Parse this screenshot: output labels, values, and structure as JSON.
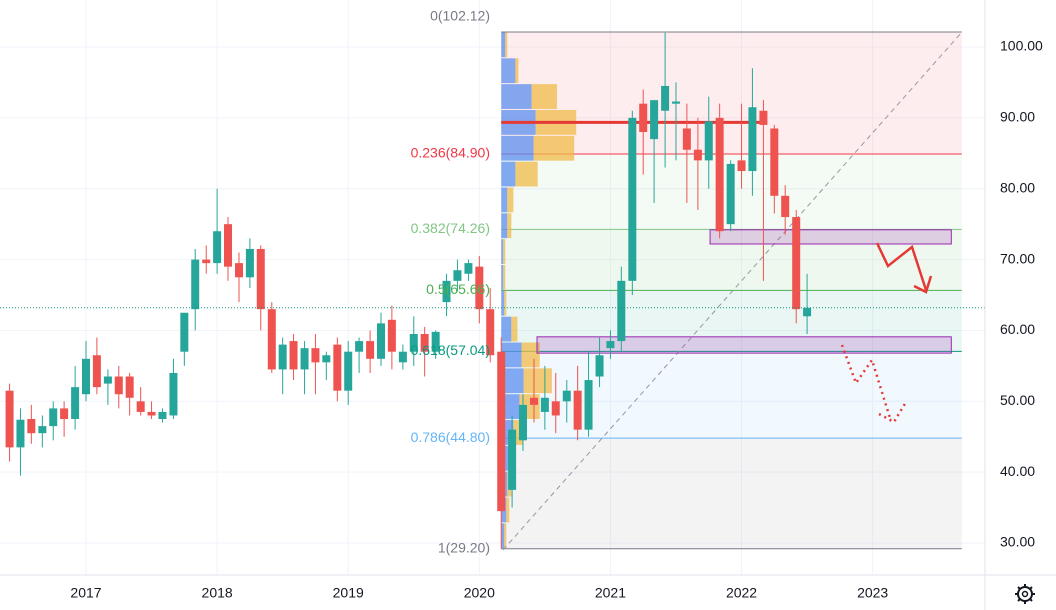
{
  "chart_data": {
    "type": "candlestick",
    "x": [
      2016.417,
      2016.5,
      2016.583,
      2016.667,
      2016.75,
      2016.833,
      2016.917,
      2017,
      2017.083,
      2017.167,
      2017.25,
      2017.333,
      2017.417,
      2017.5,
      2017.583,
      2017.667,
      2017.75,
      2017.833,
      2017.917,
      2018,
      2018.083,
      2018.167,
      2018.25,
      2018.333,
      2018.417,
      2018.5,
      2018.583,
      2018.667,
      2018.75,
      2018.833,
      2018.917,
      2019,
      2019.083,
      2019.167,
      2019.25,
      2019.333,
      2019.417,
      2019.5,
      2019.583,
      2019.667,
      2019.75,
      2019.833,
      2019.917,
      2020,
      2020.083,
      2020.167,
      2020.25,
      2020.333,
      2020.417,
      2020.5,
      2020.583,
      2020.667,
      2020.75,
      2020.833,
      2020.917,
      2021,
      2021.083,
      2021.167,
      2021.25,
      2021.333,
      2021.417,
      2021.5,
      2021.583,
      2021.667,
      2021.75,
      2021.833,
      2021.917,
      2022,
      2022.083,
      2022.167,
      2022.25,
      2022.333,
      2022.417,
      2022.5
    ],
    "open": [
      51.5,
      43.5,
      47.5,
      45.5,
      46.5,
      49,
      47.5,
      51,
      56.5,
      52.5,
      53.5,
      53.5,
      50,
      48.5,
      47.5,
      48,
      57,
      63,
      70,
      69.5,
      75,
      69.5,
      67.5,
      71.5,
      63,
      54.5,
      58.5,
      54.5,
      57.5,
      55.5,
      58,
      51.5,
      57,
      58.5,
      56,
      61.5,
      55.5,
      57,
      59.5,
      57,
      64,
      67,
      68,
      69,
      63,
      57,
      37.5,
      44.5,
      50.5,
      48.5,
      50,
      50,
      51.5,
      46,
      53.5,
      57.5,
      58.5,
      67,
      92,
      87,
      91,
      92,
      88.5,
      85.5,
      84,
      90,
      75,
      84,
      82.5,
      91,
      88.5,
      79,
      76,
      62
    ],
    "high": [
      52.5,
      49,
      49.5,
      48,
      50,
      50,
      55,
      58.5,
      59,
      54.5,
      55,
      54,
      52,
      50,
      49,
      56,
      62,
      71.5,
      72,
      80,
      76,
      71,
      73,
      72,
      64,
      59,
      59.5,
      58.5,
      59.5,
      57,
      59,
      58.5,
      59,
      60,
      62.5,
      63.5,
      58,
      62,
      60.5,
      60,
      68,
      70,
      70,
      70.5,
      66,
      59,
      48,
      51,
      56,
      55,
      54,
      53,
      55,
      57,
      59,
      60,
      69,
      91,
      94,
      92,
      102,
      95,
      92,
      90,
      93,
      92,
      84,
      92,
      97,
      92.5,
      89,
      80.5,
      77,
      68
    ],
    "low": [
      41.5,
      39.5,
      44,
      43.5,
      44.5,
      45,
      46,
      50,
      51,
      49.5,
      49,
      48,
      48,
      47.5,
      47,
      47.5,
      55,
      60,
      68,
      68,
      67,
      64,
      66,
      60,
      54,
      51,
      53,
      51,
      51,
      53,
      50,
      49.5,
      54,
      54,
      55,
      54.5,
      54.5,
      55,
      53.5,
      56,
      62,
      65.5,
      67,
      61,
      55.5,
      29.2,
      35,
      43,
      47,
      46,
      45.5,
      47,
      44.5,
      45,
      52,
      56,
      57,
      65,
      82,
      78,
      83,
      84,
      78,
      77,
      80,
      73,
      74,
      80,
      79,
      67,
      76.5,
      73.5,
      61,
      59.5
    ],
    "close": [
      43.5,
      47.4,
      45.5,
      46.5,
      49,
      47.5,
      52,
      56,
      52,
      53.5,
      51,
      50.5,
      48.5,
      48,
      48.5,
      54,
      62.5,
      70,
      69.5,
      74,
      69,
      67.5,
      71.5,
      63,
      54.5,
      58,
      54.5,
      57.5,
      55.5,
      56.5,
      51.5,
      57,
      58.5,
      56,
      61,
      57,
      57,
      59.5,
      57,
      59.8,
      67,
      68.5,
      69.5,
      63,
      56.5,
      34.5,
      46,
      49.5,
      49.5,
      50.5,
      48,
      51.5,
      46,
      53,
      56.5,
      58.5,
      67,
      90,
      88,
      92.5,
      94.5,
      92.3,
      85.5,
      84,
      89.5,
      74,
      83.5,
      82.5,
      91.5,
      89,
      79,
      76,
      63,
      63.2
    ],
    "up_color": "#26a69a",
    "down_color": "#ef5350",
    "xlim": [
      2016.344,
      2023.857
    ],
    "ylim": [
      25.49,
      106.63
    ],
    "xticks": [
      2017,
      2018,
      2019,
      2020,
      2021,
      2022,
      2023
    ],
    "yticks": [
      {
        "value": 30,
        "label": "30.00"
      },
      {
        "value": 40,
        "label": "40.00"
      },
      {
        "value": 50,
        "label": "50.00"
      },
      {
        "value": 60,
        "label": "60.00"
      },
      {
        "value": 70,
        "label": "70.00"
      },
      {
        "value": 80,
        "label": "80.00"
      },
      {
        "value": 90,
        "label": "90.00"
      },
      {
        "value": 100,
        "label": "100.00"
      }
    ],
    "grid": true,
    "last_price": 63.2,
    "last_price_color": "#089981",
    "fib_x": [
      2020.167,
      2023.68
    ],
    "fib_levels": [
      {
        "price": 102.12,
        "label": "0(102.12)",
        "color": "#787b86"
      },
      {
        "price": 84.9,
        "label": "0.236(84.90)",
        "color": "#f23645"
      },
      {
        "price": 74.26,
        "label": "0.382(74.26)",
        "color": "#81c784"
      },
      {
        "price": 65.66,
        "label": "0.5(65.66)",
        "color": "#4caf50"
      },
      {
        "price": 57.04,
        "label": "0.618(57.04)",
        "color": "#089981"
      },
      {
        "price": 44.8,
        "label": "0.786(44.80)",
        "color": "#64b5f6"
      },
      {
        "price": 29.2,
        "label": "1(29.20)",
        "color": "#787b86"
      }
    ],
    "volume_profile": {
      "bins": [
        29.2,
        32.846,
        36.492,
        40.138,
        43.784,
        47.43,
        51.076,
        54.722,
        58.368,
        62.014,
        65.66,
        69.306,
        72.952,
        76.598,
        80.244,
        83.89,
        87.536,
        91.182,
        94.828,
        98.474,
        102.12
      ],
      "up": [
        3,
        5,
        6,
        8,
        12,
        18,
        22,
        20,
        10,
        3,
        2,
        2,
        6,
        6,
        14,
        32,
        34,
        30,
        14,
        4
      ],
      "down": [
        2,
        3,
        4,
        5,
        10,
        20,
        28,
        18,
        6,
        2,
        2,
        2,
        4,
        6,
        22,
        40,
        40,
        25,
        3,
        2
      ],
      "up_color": "#5b8def",
      "down_color": "#f0b94a",
      "poc_color": "#e53935"
    },
    "zones": [
      {
        "x": [
          2021.76,
          2023.6
        ],
        "y": [
          72.2,
          74.2
        ]
      },
      {
        "x": [
          2020.44,
          2023.6
        ],
        "y": [
          56.8,
          59.1
        ]
      }
    ],
    "zone_color": "#9c27b0"
  }
}
